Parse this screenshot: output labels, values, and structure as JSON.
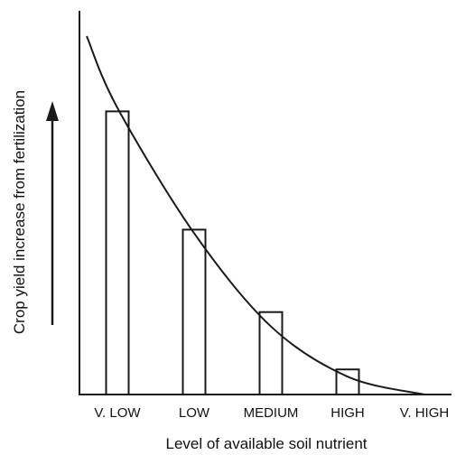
{
  "chart_data": {
    "type": "bar",
    "title": "",
    "xlabel": "Level of available soil nutrient",
    "ylabel": "Crop yield increase from fertilization",
    "categories": [
      "V. LOW",
      "LOW",
      "MEDIUM",
      "HIGH",
      "V. HIGH"
    ],
    "values": [
      79,
      46,
      23,
      7,
      0
    ],
    "ylim": [
      0,
      100
    ],
    "y_ticks_shown": false,
    "grid": false,
    "legend": "none",
    "colors": {
      "line": "#1a1a1a",
      "bar_fill": "#ffffff"
    },
    "curve": {
      "type": "line",
      "x": [
        -0.4,
        0.0,
        1.0,
        2.0,
        3.0,
        4.0
      ],
      "y": [
        100,
        80,
        45,
        19,
        5,
        0
      ]
    },
    "annotation_arrow": "up-arrow"
  }
}
